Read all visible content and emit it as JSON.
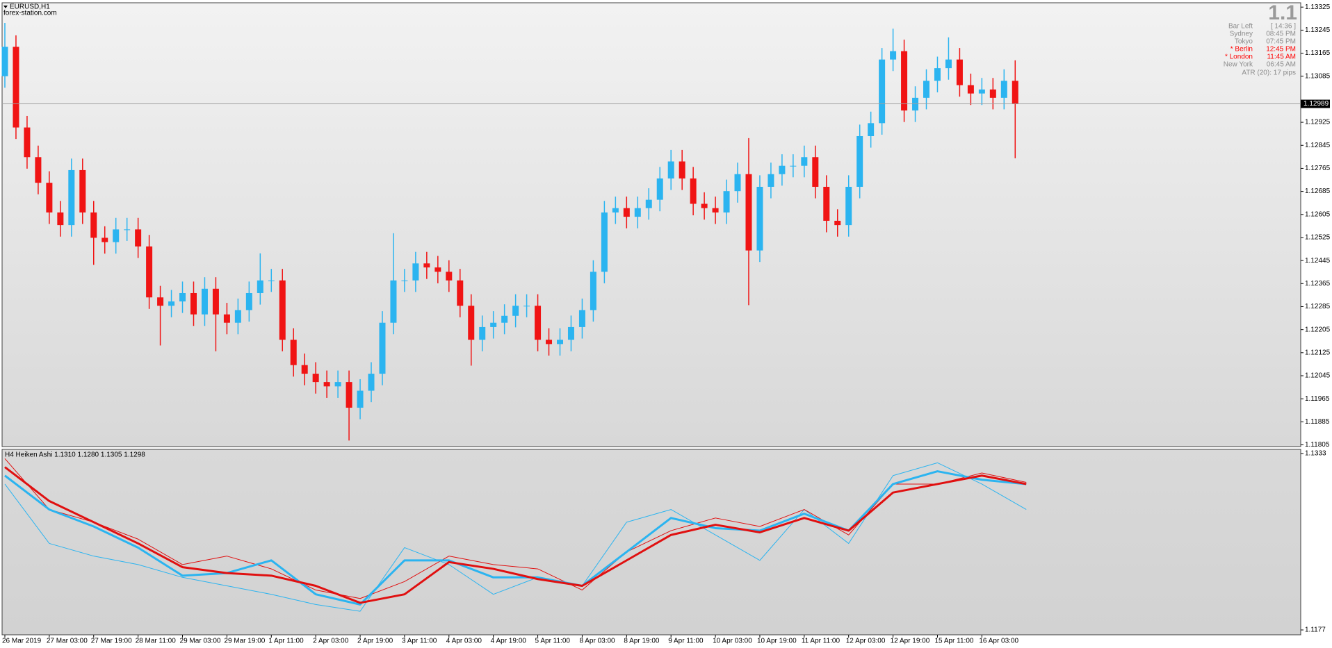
{
  "header": {
    "symbol": "EURUSD,H1",
    "source": "forex-station.com"
  },
  "info_panel": {
    "big_price": "1.1",
    "rows": [
      [
        "Bar Left",
        "[ 14:36 ]"
      ],
      [
        "Sydney",
        "08:45 PM"
      ],
      [
        "Tokyo",
        "07:45 PM"
      ],
      [
        "* Berlin",
        "12:45 PM"
      ],
      [
        "* London",
        "11:45 AM"
      ],
      [
        "New York",
        "06:45 AM"
      ]
    ],
    "highlight_color": "#ff0000",
    "text_color": "#8c8c8c",
    "highlight_rows": [
      3,
      4
    ],
    "atr": "ATR (20): 17 pips"
  },
  "chart_data": [
    {
      "type": "candlestick",
      "up_color": "#2bb4f0",
      "down_color": "#f01414",
      "current_price": 1.12989,
      "current_price_line_color": "#a0a0a0",
      "ylim": [
        1.11799,
        1.1334
      ],
      "yticks": [
        1.13325,
        1.13245,
        1.13165,
        1.13085,
        1.12925,
        1.12845,
        1.12765,
        1.12685,
        1.12605,
        1.12525,
        1.12445,
        1.12365,
        1.12285,
        1.12205,
        1.12125,
        1.12045,
        1.11965,
        1.11885,
        1.11805
      ],
      "open": [
        1.13085,
        1.13187,
        1.12907,
        1.12804,
        1.12715,
        1.12612,
        1.12568,
        1.12759,
        1.12612,
        1.12524,
        1.12509,
        1.12553,
        1.12553,
        1.12494,
        1.12317,
        1.12288,
        1.12303,
        1.12332,
        1.12258,
        1.12347,
        1.12258,
        1.12229,
        1.12273,
        1.12332,
        1.12376,
        1.12376,
        1.1217,
        1.12082,
        1.12052,
        1.12023,
        1.12008,
        1.12023,
        1.11934,
        1.11993,
        1.12052,
        1.12229,
        1.12376,
        1.12376,
        1.12435,
        1.12421,
        1.12406,
        1.12376,
        1.12288,
        1.1217,
        1.12214,
        1.12229,
        1.12253,
        1.12288,
        1.12288,
        1.1217,
        1.12155,
        1.1217,
        1.12214,
        1.12273,
        1.12406,
        1.12612,
        1.12627,
        1.12597,
        1.12627,
        1.12656,
        1.1273,
        1.12789,
        1.1273,
        1.12642,
        1.12627,
        1.12612,
        1.12686,
        1.12745,
        1.1248,
        1.12701,
        1.12745,
        1.12774,
        1.12774,
        1.12804,
        1.12701,
        1.12583,
        1.12568,
        1.12701,
        1.12877,
        1.12922,
        1.13143,
        1.13172,
        1.12966,
        1.1301,
        1.13069,
        1.13113,
        1.13143,
        1.13054,
        1.13025,
        1.13039,
        1.1301,
        1.13069
      ],
      "high": [
        1.1327,
        1.13227,
        1.12947,
        1.12844,
        1.12755,
        1.12652,
        1.12799,
        1.12799,
        1.12652,
        1.12564,
        1.12593,
        1.12593,
        1.12593,
        1.12534,
        1.12357,
        1.12343,
        1.12372,
        1.12372,
        1.12387,
        1.12387,
        1.12298,
        1.12313,
        1.12372,
        1.1247,
        1.12416,
        1.12416,
        1.1221,
        1.12122,
        1.12092,
        1.12063,
        1.12063,
        1.12063,
        1.12033,
        1.12092,
        1.12269,
        1.1254,
        1.12416,
        1.12475,
        1.12475,
        1.12461,
        1.12446,
        1.12416,
        1.12328,
        1.12254,
        1.12269,
        1.12293,
        1.12328,
        1.12328,
        1.12328,
        1.1221,
        1.1221,
        1.12254,
        1.12313,
        1.12446,
        1.12652,
        1.12667,
        1.12667,
        1.12667,
        1.12696,
        1.1277,
        1.12829,
        1.12829,
        1.1277,
        1.12682,
        1.12667,
        1.12726,
        1.12785,
        1.1287,
        1.12741,
        1.12785,
        1.12814,
        1.12814,
        1.12844,
        1.12844,
        1.12741,
        1.12623,
        1.12741,
        1.12917,
        1.12962,
        1.13183,
        1.1325,
        1.13212,
        1.1305,
        1.13109,
        1.13153,
        1.1322,
        1.13183,
        1.13094,
        1.13079,
        1.13079,
        1.13109,
        1.1314
      ],
      "low": [
        1.13045,
        1.12867,
        1.12764,
        1.12675,
        1.12572,
        1.12528,
        1.12528,
        1.12572,
        1.1243,
        1.12469,
        1.12469,
        1.12513,
        1.12454,
        1.12277,
        1.1215,
        1.12248,
        1.12263,
        1.12218,
        1.12218,
        1.1213,
        1.12189,
        1.12189,
        1.12233,
        1.12292,
        1.12336,
        1.1213,
        1.12042,
        1.12012,
        1.11983,
        1.11968,
        1.11968,
        1.1182,
        1.11894,
        1.11953,
        1.12012,
        1.12189,
        1.12336,
        1.12336,
        1.12381,
        1.12366,
        1.12336,
        1.12248,
        1.1208,
        1.1213,
        1.12174,
        1.12189,
        1.12213,
        1.12248,
        1.1213,
        1.12115,
        1.12115,
        1.1213,
        1.12174,
        1.12233,
        1.12366,
        1.12572,
        1.12557,
        1.12557,
        1.12587,
        1.12616,
        1.1269,
        1.1269,
        1.12602,
        1.12587,
        1.12572,
        1.12572,
        1.12646,
        1.1229,
        1.1244,
        1.12661,
        1.12705,
        1.12734,
        1.12734,
        1.12661,
        1.12543,
        1.12528,
        1.12528,
        1.12661,
        1.12837,
        1.12882,
        1.13103,
        1.12926,
        1.12926,
        1.1297,
        1.13029,
        1.13073,
        1.13014,
        1.12985,
        1.12985,
        1.1297,
        1.1297,
        1.128
      ],
      "close": [
        1.13187,
        1.12907,
        1.12804,
        1.12715,
        1.12612,
        1.12568,
        1.12759,
        1.12612,
        1.12524,
        1.12509,
        1.12553,
        1.12553,
        1.12494,
        1.12317,
        1.12288,
        1.12303,
        1.12332,
        1.12258,
        1.12347,
        1.12258,
        1.12229,
        1.12273,
        1.12332,
        1.12376,
        1.12376,
        1.1217,
        1.12082,
        1.12052,
        1.12023,
        1.12008,
        1.12023,
        1.11934,
        1.11993,
        1.12052,
        1.12229,
        1.12376,
        1.12376,
        1.12435,
        1.12421,
        1.12406,
        1.12376,
        1.12288,
        1.1217,
        1.12214,
        1.12229,
        1.12253,
        1.12288,
        1.12288,
        1.1217,
        1.12155,
        1.1217,
        1.12214,
        1.12273,
        1.12406,
        1.12612,
        1.12627,
        1.12597,
        1.12627,
        1.12656,
        1.1273,
        1.12789,
        1.1273,
        1.12642,
        1.12627,
        1.12612,
        1.12686,
        1.12745,
        1.1248,
        1.12701,
        1.12745,
        1.12774,
        1.12774,
        1.12804,
        1.12701,
        1.12583,
        1.12568,
        1.12701,
        1.12877,
        1.12922,
        1.13143,
        1.13172,
        1.12966,
        1.1301,
        1.13069,
        1.13113,
        1.13143,
        1.13054,
        1.13025,
        1.13039,
        1.1301,
        1.13069,
        1.12989
      ]
    },
    {
      "type": "line",
      "title": "H4 Heiken Ashi 1.1310 1.1280 1.1305 1.1298",
      "ylim": [
        1.1177,
        1.1333
      ],
      "yticks": [
        1.1333,
        1.1177
      ],
      "categories": [
        "26 Mar 2019",
        "27 Mar 03:00",
        "27 Mar 19:00",
        "28 Mar 11:00",
        "29 Mar 03:00",
        "29 Mar 19:00",
        "1 Apr 11:00",
        "2 Apr 03:00",
        "2 Apr 19:00",
        "3 Apr 11:00",
        "4 Apr 03:00",
        "4 Apr 19:00",
        "5 Apr 11:00",
        "8 Apr 03:00",
        "8 Apr 19:00",
        "9 Apr 11:00",
        "10 Apr 03:00",
        "10 Apr 19:00",
        "11 Apr 11:00",
        "12 Apr 03:00",
        "12 Apr 19:00",
        "15 Apr 11:00",
        "16 Apr 03:00",
        null
      ],
      "series": [
        {
          "color": "#2bb4f0",
          "line_width": 1,
          "values": [
            1.1306,
            1.12535,
            1.12423,
            1.12348,
            1.12235,
            1.1216,
            1.12085,
            1.11995,
            1.11935,
            1.12498,
            1.12348,
            1.12085,
            1.12235,
            1.1216,
            1.12723,
            1.12835,
            1.1261,
            1.12385,
            1.12835,
            1.12535,
            1.13135,
            1.13248,
            1.1306,
            1.12835
          ]
        },
        {
          "color": "#e01010",
          "line_width": 1,
          "values": [
            1.13285,
            1.12835,
            1.12723,
            1.12573,
            1.12348,
            1.12423,
            1.1231,
            1.12123,
            1.12048,
            1.12198,
            1.12423,
            1.12348,
            1.1231,
            1.12123,
            1.1246,
            1.12648,
            1.1276,
            1.12685,
            1.12835,
            1.1261,
            1.1306,
            1.1306,
            1.13158,
            1.13075
          ]
        },
        {
          "color": "#2bb4f0",
          "line_width": 3,
          "values": [
            1.13135,
            1.12835,
            1.12685,
            1.12498,
            1.1225,
            1.12273,
            1.12385,
            1.12085,
            1.11995,
            1.12385,
            1.12385,
            1.12235,
            1.12235,
            1.1216,
            1.1246,
            1.1276,
            1.1267,
            1.12648,
            1.12798,
            1.12648,
            1.1306,
            1.13173,
            1.13098,
            1.1306
          ]
        },
        {
          "color": "#e01010",
          "line_width": 3,
          "values": [
            1.1321,
            1.1291,
            1.12723,
            1.12535,
            1.12325,
            1.12273,
            1.1225,
            1.1216,
            1.1201,
            1.12085,
            1.1237,
            1.1231,
            1.1222,
            1.1216,
            1.12385,
            1.1261,
            1.127,
            1.12633,
            1.1276,
            1.12648,
            1.12985,
            1.1306,
            1.13135,
            1.1306
          ]
        }
      ]
    }
  ]
}
